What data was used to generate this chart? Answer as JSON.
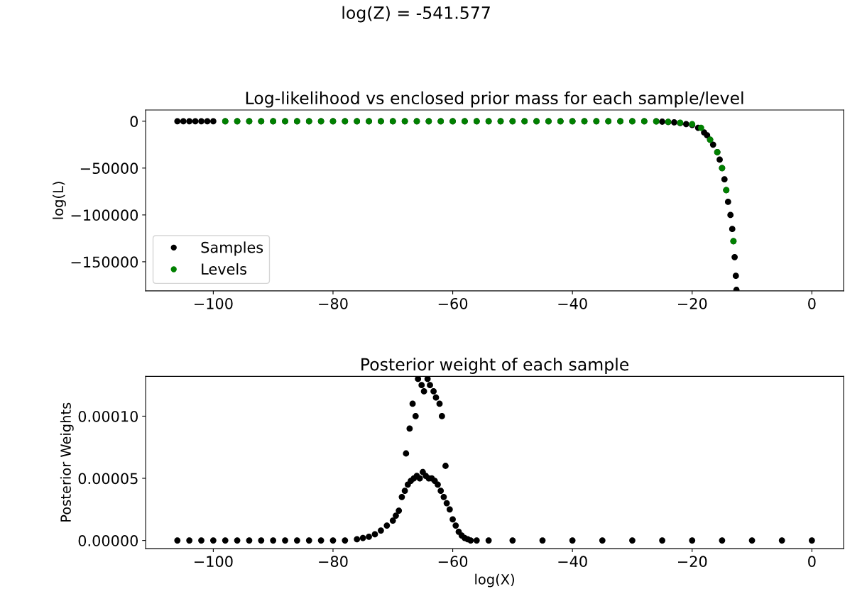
{
  "chart_data": [
    {
      "type": "scatter",
      "title": "Log-likelihood vs enclosed prior mass for each sample/level",
      "ylabel": "log(L)",
      "annotations": [
        "log(Z) = -541.577"
      ],
      "marker": "circle",
      "legend": "bottom left",
      "grid": false,
      "xlim": [
        -111.3,
        5.3
      ],
      "ylim": [
        -181000,
        12000
      ],
      "xticks": [
        {
          "value": -100,
          "label": "−100"
        },
        {
          "value": -80,
          "label": "−80"
        },
        {
          "value": -60,
          "label": "−60"
        },
        {
          "value": -40,
          "label": "−40"
        },
        {
          "value": -20,
          "label": "−20"
        },
        0
      ],
      "yticks": [
        {
          "value": -150000,
          "label": "−150000"
        },
        {
          "value": -100000,
          "label": "−100000"
        },
        {
          "value": -50000,
          "label": "−50000"
        },
        0
      ],
      "series": [
        {
          "name": "Samples",
          "color": "#000000",
          "x": [
            -106,
            -105,
            -104,
            -103,
            -102,
            -101,
            -100,
            -98,
            -96,
            -94,
            -92,
            -90,
            -88,
            -86,
            -84,
            -82,
            -80,
            -78,
            -76,
            -74,
            -72,
            -70,
            -68,
            -66,
            -64,
            -62,
            -60,
            -58,
            -56,
            -54,
            -52,
            -50,
            -48,
            -46,
            -44,
            -42,
            -40,
            -38,
            -36,
            -34,
            -32,
            -30,
            -28,
            -26,
            -25,
            -24,
            -23,
            -22,
            -21,
            -20,
            -19,
            -18,
            -17.5,
            -17,
            -16.5,
            -15.8,
            -15.4,
            -15,
            -14.6,
            -14.3,
            -14,
            -13.6,
            -13.3,
            -13.1,
            -12.9,
            -12.7,
            -12.6
          ],
          "values": [
            0,
            0,
            0,
            0,
            0,
            0,
            0,
            0,
            0,
            0,
            0,
            0,
            0,
            0,
            0,
            0,
            0,
            0,
            0,
            0,
            0,
            0,
            0,
            0,
            0,
            0,
            0,
            0,
            0,
            0,
            0,
            0,
            0,
            0,
            0,
            0,
            0,
            0,
            0,
            0,
            0,
            0,
            0,
            0,
            -500,
            -800,
            -1200,
            -2000,
            -3000,
            -4000,
            -7000,
            -12000,
            -15000,
            -19700,
            -25000,
            -33000,
            -41000,
            -50000,
            -62000,
            -73500,
            -86000,
            -100000,
            -115000,
            -128000,
            -145000,
            -165000,
            -180000
          ]
        },
        {
          "name": "Levels",
          "color": "#008000",
          "x": [
            -98,
            -96,
            -94,
            -92,
            -90,
            -88,
            -86,
            -84,
            -82,
            -80,
            -78,
            -76,
            -74,
            -72,
            -70,
            -68,
            -66,
            -64,
            -62,
            -60,
            -58,
            -56,
            -54,
            -52,
            -50,
            -48,
            -46,
            -44,
            -42,
            -40,
            -38,
            -36,
            -34,
            -32,
            -30,
            -28,
            -26,
            -24,
            -22,
            -20,
            -18.5,
            -17,
            -15.8,
            -15,
            -14.3,
            -13.1
          ],
          "values": [
            0,
            0,
            0,
            0,
            0,
            0,
            0,
            0,
            0,
            0,
            0,
            0,
            0,
            0,
            0,
            0,
            0,
            0,
            0,
            0,
            0,
            0,
            0,
            0,
            0,
            0,
            0,
            0,
            0,
            0,
            0,
            0,
            0,
            0,
            0,
            0,
            -300,
            -700,
            -1500,
            -3000,
            -7000,
            -19700,
            -33000,
            -50000,
            -73500,
            -128000
          ]
        }
      ]
    },
    {
      "type": "scatter",
      "title": "Posterior weight of each sample",
      "xlabel": "log(X)",
      "ylabel": "Posterior Weights",
      "marker": "circle",
      "grid": false,
      "xlim": [
        -111.3,
        5.3
      ],
      "ylim": [
        -6.6e-06,
        0.000132
      ],
      "xticks": [
        {
          "value": -100,
          "label": "−100"
        },
        {
          "value": -80,
          "label": "−80"
        },
        {
          "value": -60,
          "label": "−60"
        },
        {
          "value": -40,
          "label": "−40"
        },
        {
          "value": -20,
          "label": "−20"
        },
        0
      ],
      "yticks": [
        {
          "value": 0,
          "label": "0.00000"
        },
        {
          "value": 5e-05,
          "label": "0.00005"
        },
        {
          "value": 0.0001,
          "label": "0.00010"
        }
      ],
      "series": [
        {
          "color": "#000000",
          "x": [
            -106,
            -104,
            -102,
            -100,
            -98,
            -96,
            -94,
            -92,
            -90,
            -88,
            -86,
            -84,
            -82,
            -80,
            -78,
            -76,
            -75,
            -74,
            -73,
            -72,
            -71,
            -70,
            -69.5,
            -69,
            -68.5,
            -68,
            -67.8,
            -67.5,
            -67.2,
            -67,
            -66.7,
            -66.5,
            -66.2,
            -66,
            -65.8,
            -65.5,
            -65.2,
            -65,
            -64.8,
            -64.5,
            -64.2,
            -64,
            -63.8,
            -63.5,
            -63.2,
            -63,
            -62.8,
            -62.5,
            -62.2,
            -62,
            -61.8,
            -61.5,
            -61.2,
            -61,
            -60.5,
            -60,
            -59.5,
            -59,
            -58.5,
            -58,
            -57.5,
            -57,
            -56,
            -54,
            -50,
            -45,
            -40,
            -35,
            -30,
            -25,
            -20,
            -15,
            -10,
            -5,
            0
          ],
          "values": [
            0,
            0,
            0,
            0,
            0,
            0,
            0,
            0,
            0,
            0,
            0,
            0,
            0,
            0,
            0,
            1e-06,
            2e-06,
            3e-06,
            5e-06,
            8e-06,
            1.2e-05,
            1.6e-05,
            2e-05,
            2.4e-05,
            3.5e-05,
            4e-05,
            7e-05,
            4.5e-05,
            9e-05,
            4.8e-05,
            0.00011,
            5e-05,
            0.0001,
            5.2e-05,
            0.00013,
            5e-05,
            0.000125,
            5.5e-05,
            0.00012,
            5.2e-05,
            0.00013,
            5e-05,
            0.000125,
            5e-05,
            0.00012,
            4.8e-05,
            0.000115,
            4.5e-05,
            0.00011,
            4e-05,
            0.0001,
            3.5e-05,
            6e-05,
            3e-05,
            2.5e-05,
            1.7e-05,
            1.2e-05,
            7e-06,
            4e-06,
            2e-06,
            1e-06,
            0,
            0,
            0,
            0,
            0,
            0,
            0,
            0,
            0,
            0,
            0,
            0,
            0,
            0
          ]
        }
      ]
    }
  ]
}
